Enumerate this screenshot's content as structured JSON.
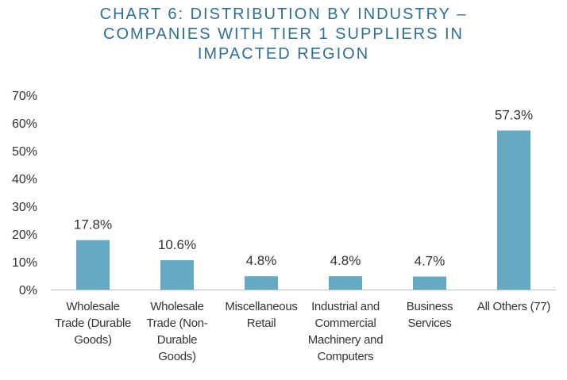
{
  "chart_data": {
    "type": "bar",
    "title_lines": [
      "CHART 6: DISTRIBUTION BY INDUSTRY –",
      "COMPANIES WITH TIER 1 SUPPLIERS IN",
      "IMPACTED REGION"
    ],
    "categories": [
      [
        "Wholesale",
        "Trade (Durable",
        "Goods)"
      ],
      [
        "Wholesale",
        "Trade (Non-",
        "Durable",
        "Goods)"
      ],
      [
        "Miscellaneous",
        "Retail"
      ],
      [
        "Industrial and",
        "Commercial",
        "Machinery and",
        "Computers"
      ],
      [
        "Business",
        "Services"
      ],
      [
        "All Others (77)"
      ]
    ],
    "values": [
      17.8,
      10.6,
      4.8,
      4.8,
      4.7,
      57.3
    ],
    "data_labels": [
      "17.8%",
      "10.6%",
      "4.8%",
      "4.8%",
      "4.7%",
      "57.3%"
    ],
    "ylim": [
      0,
      70
    ],
    "yticks": [
      "0%",
      "10%",
      "20%",
      "30%",
      "40%",
      "50%",
      "60%",
      "70%"
    ],
    "grid": false,
    "bar_color": "#65a9c3"
  }
}
